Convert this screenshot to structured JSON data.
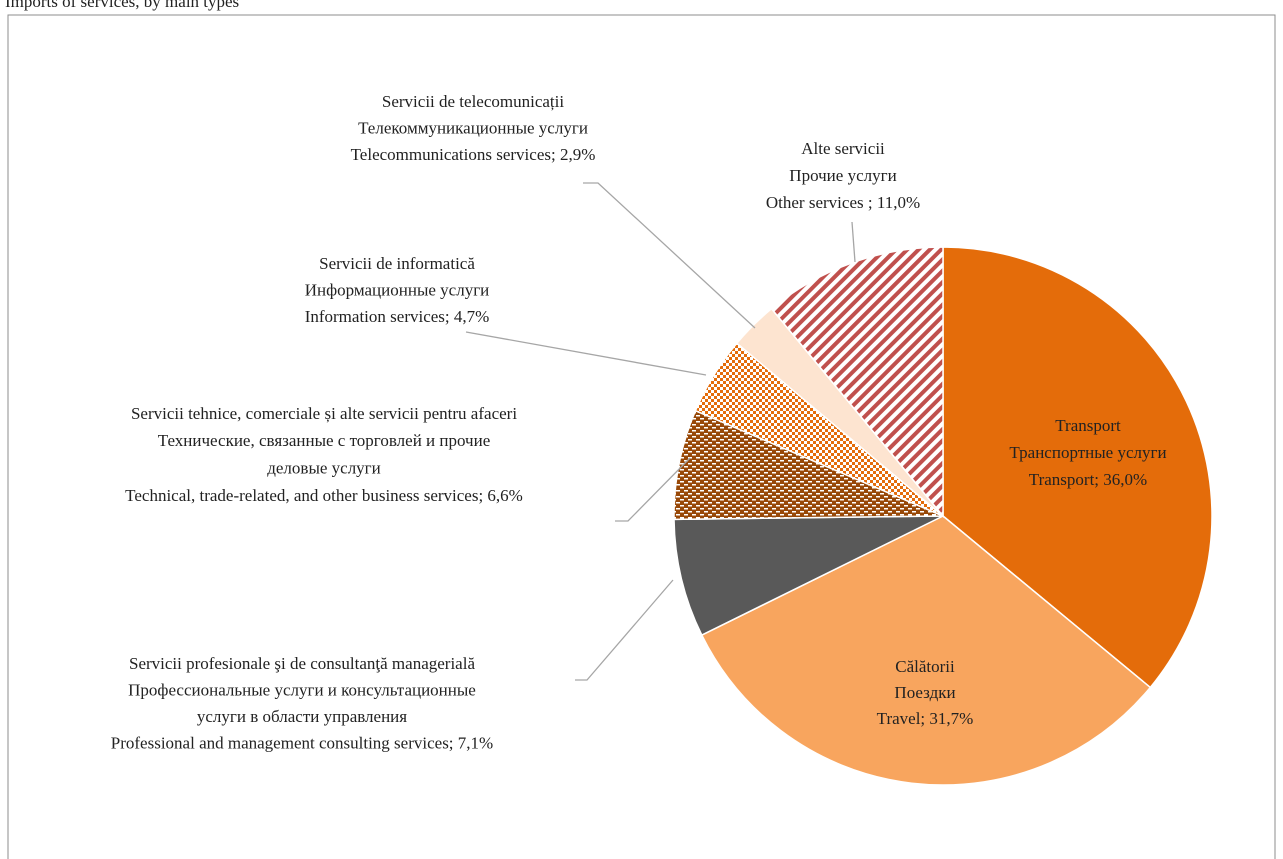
{
  "chart_data": {
    "type": "pie",
    "title": "Imports of services, by main types",
    "labels": [
      [
        "Transport",
        "Транспортные услуги"
      ],
      [
        "Călătorii",
        "Поездки"
      ],
      [
        "Servicii profesionale şi de consultanţă managerială",
        "Профессиональные услуги и консультационные",
        "услуги в области управления"
      ],
      [
        "Servicii tehnice, comerciale și alte servicii pentru afaceri",
        "Технические, связанные с торговлей и прочие",
        "деловые услуги"
      ],
      [
        "Servicii de informatică",
        "Информационные услуги"
      ],
      [
        "Servicii de telecomunicații",
        "Телекоммуникационные услуги"
      ],
      [
        "Alte servicii",
        "Прочие услуги"
      ]
    ],
    "values": [
      36.0,
      31.7,
      7.1,
      6.6,
      4.7,
      2.9,
      11.0
    ],
    "value_labels": [
      "Transport; 36,0%",
      "Travel; 31,7%",
      "Professional and management consulting services; 7,1%",
      "Technical, trade-related, and other business services; 6,6%",
      "Information services; 4,7%",
      "Telecommunications services; 2,9%",
      "Other services ; 11,0%"
    ],
    "colors": [
      "#e46c0a",
      "#f8a55e",
      "#595959",
      "#984807",
      "#e46c0a",
      "#fde4d0",
      "#c0504d"
    ],
    "patterns": [
      "solid",
      "solid",
      "solid",
      "dashes",
      "dots",
      "solid",
      "stripes"
    ]
  }
}
